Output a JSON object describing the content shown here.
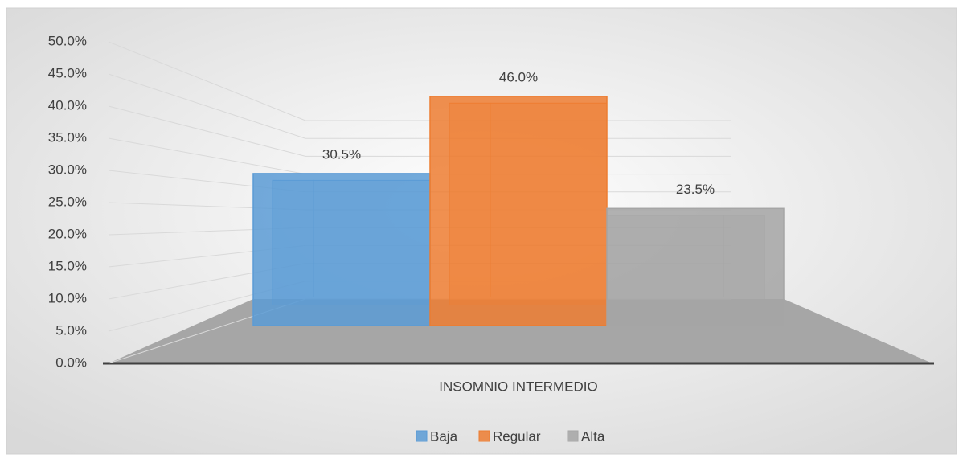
{
  "chart_data": {
    "type": "bar3d",
    "categories": [
      "INSOMNIO INTERMEDIO"
    ],
    "series": [
      {
        "name": "Baja",
        "color": "#5b9bd5",
        "values": [
          30.5
        ],
        "value_labels": [
          "30.5%"
        ]
      },
      {
        "name": "Regular",
        "color": "#ed7d31",
        "values": [
          46
        ],
        "value_labels": [
          "46.0%"
        ]
      },
      {
        "name": "Alta",
        "color": "#a5a5a5",
        "values": [
          23.5
        ],
        "value_labels": [
          "23.5%"
        ]
      }
    ],
    "ylim": [
      0,
      50
    ],
    "yticks": [
      {
        "value": 0,
        "label": "0.0%"
      },
      {
        "value": 5,
        "label": "5.0%"
      },
      {
        "value": 10,
        "label": "10.0%"
      },
      {
        "value": 15,
        "label": "15.0%"
      },
      {
        "value": 20,
        "label": "20.0%"
      },
      {
        "value": 25,
        "label": "25.0%"
      },
      {
        "value": 30,
        "label": "30.0%"
      },
      {
        "value": 35,
        "label": "35.0%"
      },
      {
        "value": 40,
        "label": "40.0%"
      },
      {
        "value": 45,
        "label": "45.0%"
      },
      {
        "value": 50,
        "label": "50.0%"
      }
    ],
    "grid": true,
    "legend": "bottom"
  }
}
